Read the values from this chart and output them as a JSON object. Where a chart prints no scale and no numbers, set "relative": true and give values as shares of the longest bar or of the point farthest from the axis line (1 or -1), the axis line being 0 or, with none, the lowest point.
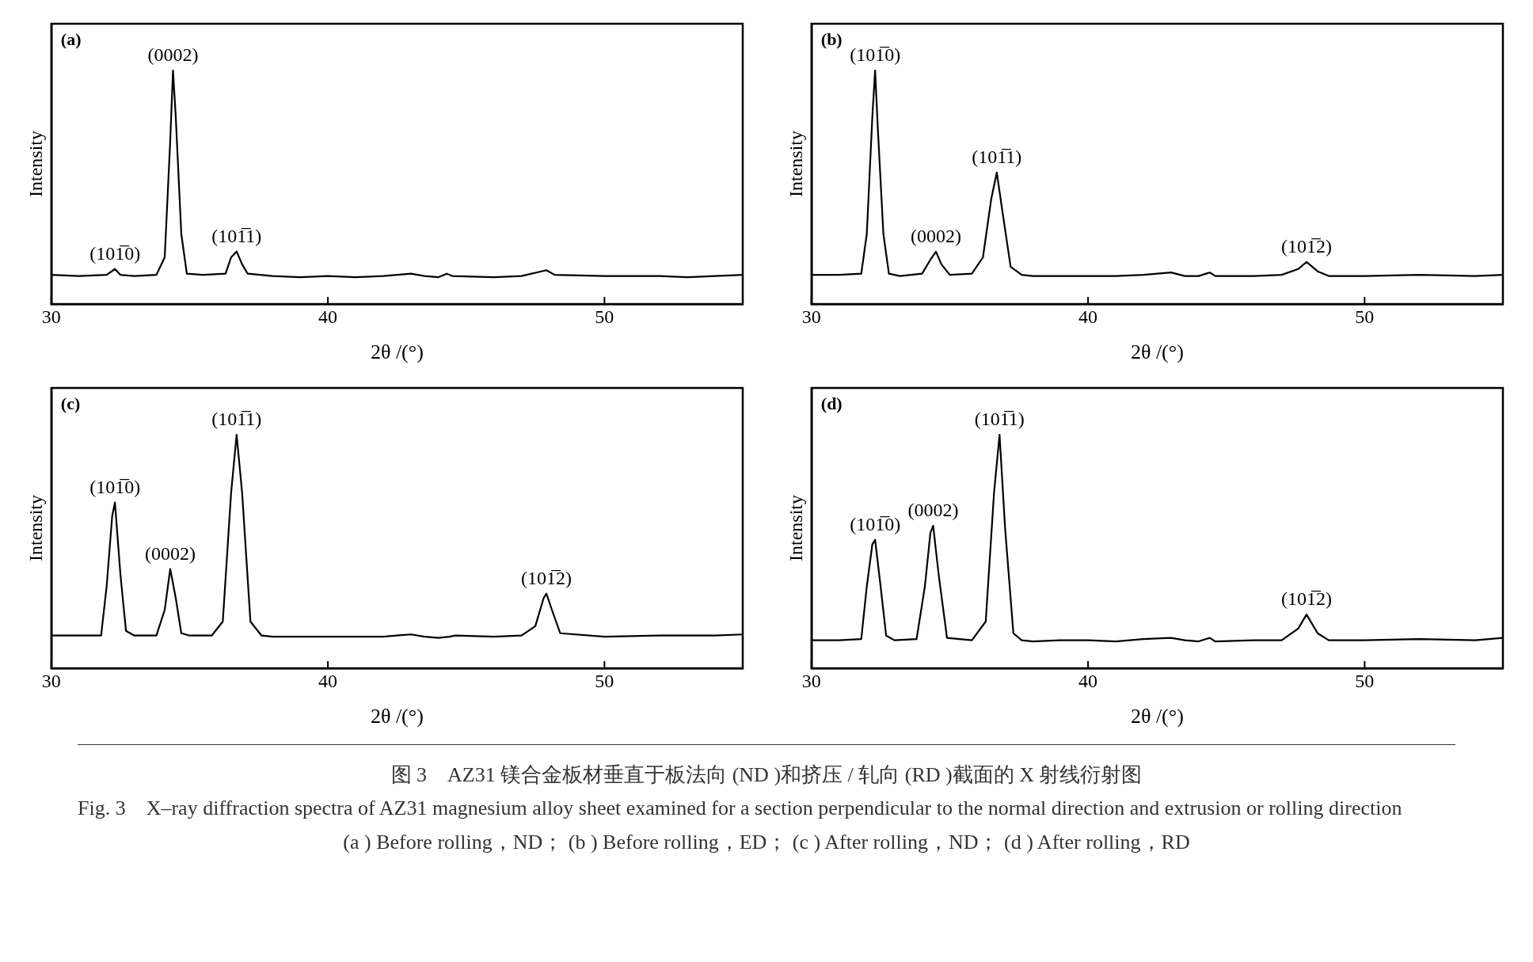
{
  "chart_data": [
    {
      "type": "line",
      "relative": true,
      "xlabel": "2θ /(°)",
      "ylabel": "Intensity",
      "xlim": [
        30,
        55
      ],
      "xticks": [
        30,
        40,
        50
      ],
      "grid": false,
      "legend": false,
      "marker": "none",
      "line_style": "solid",
      "series": [
        {
          "color": "#000000",
          "x": [
            30,
            31,
            32,
            32.3,
            32.5,
            33,
            33.8,
            34.1,
            34.3,
            34.4,
            34.5,
            34.7,
            34.9,
            35.5,
            36.3,
            36.5,
            36.7,
            36.9,
            37.1,
            38,
            39,
            40,
            41,
            42,
            43,
            43.5,
            44,
            44.3,
            44.5,
            46,
            47,
            47.9,
            48.2,
            50,
            52,
            53,
            54,
            55
          ],
          "values": [
            0.125,
            0.12,
            0.125,
            0.15,
            0.125,
            0.12,
            0.125,
            0.2,
            0.7,
            1.0,
            0.8,
            0.3,
            0.13,
            0.125,
            0.13,
            0.2,
            0.225,
            0.17,
            0.13,
            0.12,
            0.115,
            0.12,
            0.115,
            0.12,
            0.13,
            0.12,
            0.115,
            0.13,
            0.12,
            0.115,
            0.12,
            0.145,
            0.125,
            0.12,
            0.12,
            0.115,
            0.12,
            0.125
          ]
        }
      ],
      "annotations": [
        "(a)",
        {
          "text": "(101̅0)",
          "x": 32.3,
          "y": 0.15
        },
        {
          "text": "(0002)",
          "x": 34.4,
          "y": 1.0
        },
        {
          "text": "(101̅1)",
          "x": 36.7,
          "y": 0.225
        }
      ]
    },
    {
      "type": "line",
      "relative": true,
      "xlabel": "2θ /(°)",
      "ylabel": "Intensity",
      "xlim": [
        30,
        55
      ],
      "xticks": [
        30,
        40,
        50
      ],
      "grid": false,
      "legend": false,
      "marker": "none",
      "line_style": "solid",
      "series": [
        {
          "color": "#000000",
          "x": [
            30,
            31,
            31.8,
            32.0,
            32.2,
            32.3,
            32.4,
            32.6,
            32.8,
            33.2,
            34.0,
            34.3,
            34.5,
            34.7,
            35.0,
            35.8,
            36.2,
            36.5,
            36.7,
            36.9,
            37.2,
            37.6,
            38,
            39,
            40,
            41,
            42,
            43,
            43.5,
            44,
            44.4,
            44.6,
            46,
            47,
            47.6,
            47.9,
            48.3,
            48.7,
            50,
            52,
            54,
            55
          ],
          "values": [
            0.125,
            0.125,
            0.13,
            0.3,
            0.8,
            1.0,
            0.75,
            0.3,
            0.13,
            0.12,
            0.13,
            0.19,
            0.224,
            0.17,
            0.125,
            0.13,
            0.2,
            0.45,
            0.563,
            0.4,
            0.16,
            0.125,
            0.12,
            0.12,
            0.12,
            0.12,
            0.125,
            0.135,
            0.12,
            0.12,
            0.135,
            0.12,
            0.12,
            0.125,
            0.15,
            0.18,
            0.14,
            0.12,
            0.12,
            0.125,
            0.12,
            0.125
          ]
        }
      ],
      "annotations": [
        "(b)",
        {
          "text": "(101̅0)",
          "x": 32.3,
          "y": 1.0
        },
        {
          "text": "(0002)",
          "x": 34.5,
          "y": 0.224
        },
        {
          "text": "(101̅1)",
          "x": 36.7,
          "y": 0.563
        },
        {
          "text": "(101̅2)",
          "x": 47.9,
          "y": 0.18
        }
      ]
    },
    {
      "type": "line",
      "relative": true,
      "xlabel": "2θ /(°)",
      "ylabel": "Intensity",
      "xlim": [
        30,
        55
      ],
      "xticks": [
        30,
        40,
        50
      ],
      "grid": false,
      "legend": false,
      "marker": "none",
      "line_style": "solid",
      "series": [
        {
          "color": "#000000",
          "x": [
            30,
            31,
            31.8,
            32.0,
            32.2,
            32.3,
            32.5,
            32.7,
            33,
            33.8,
            34.1,
            34.3,
            34.5,
            34.7,
            35.0,
            35.8,
            36.2,
            36.5,
            36.7,
            36.9,
            37.2,
            37.6,
            38,
            39,
            40,
            41,
            42,
            43,
            43.5,
            44,
            44.4,
            44.6,
            46,
            47,
            47.5,
            47.8,
            47.9,
            48.1,
            48.4,
            50,
            52,
            54,
            55
          ],
          "values": [
            0.14,
            0.14,
            0.14,
            0.35,
            0.65,
            0.71,
            0.4,
            0.16,
            0.14,
            0.14,
            0.25,
            0.425,
            0.3,
            0.15,
            0.14,
            0.14,
            0.2,
            0.75,
            1.0,
            0.75,
            0.2,
            0.14,
            0.135,
            0.135,
            0.135,
            0.135,
            0.135,
            0.145,
            0.135,
            0.13,
            0.135,
            0.14,
            0.135,
            0.14,
            0.18,
            0.3,
            0.32,
            0.25,
            0.15,
            0.135,
            0.14,
            0.14,
            0.145
          ]
        }
      ],
      "annotations": [
        "(c)",
        {
          "text": "(101̅0)",
          "x": 32.3,
          "y": 0.71
        },
        {
          "text": "(0002)",
          "x": 34.3,
          "y": 0.425
        },
        {
          "text": "(101̅1)",
          "x": 36.7,
          "y": 1.0
        },
        {
          "text": "(101̅2)",
          "x": 47.9,
          "y": 0.32
        }
      ]
    },
    {
      "type": "line",
      "relative": true,
      "xlabel": "2θ /(°)",
      "ylabel": "Intensity",
      "xlim": [
        30,
        55
      ],
      "xticks": [
        30,
        40,
        50
      ],
      "grid": false,
      "legend": false,
      "marker": "none",
      "line_style": "solid",
      "series": [
        {
          "color": "#000000",
          "x": [
            30,
            31,
            31.8,
            32.0,
            32.2,
            32.3,
            32.5,
            32.7,
            33,
            33.8,
            34.1,
            34.3,
            34.4,
            34.6,
            34.9,
            35.8,
            36.3,
            36.6,
            36.8,
            37.0,
            37.3,
            37.6,
            38,
            39,
            40,
            41,
            42,
            43,
            43.5,
            44,
            44.4,
            44.6,
            46,
            47,
            47.6,
            47.9,
            48.3,
            48.7,
            50,
            52,
            54,
            55
          ],
          "values": [
            0.12,
            0.12,
            0.125,
            0.35,
            0.53,
            0.55,
            0.35,
            0.14,
            0.12,
            0.125,
            0.35,
            0.58,
            0.61,
            0.4,
            0.13,
            0.12,
            0.2,
            0.75,
            1.0,
            0.6,
            0.15,
            0.12,
            0.115,
            0.12,
            0.12,
            0.115,
            0.125,
            0.13,
            0.12,
            0.115,
            0.13,
            0.115,
            0.12,
            0.12,
            0.17,
            0.23,
            0.15,
            0.12,
            0.12,
            0.125,
            0.12,
            0.13
          ]
        }
      ],
      "annotations": [
        "(d)",
        {
          "text": "(101̅0)",
          "x": 32.3,
          "y": 0.55
        },
        {
          "text": "(0002)",
          "x": 34.4,
          "y": 0.61
        },
        {
          "text": "(101̅1)",
          "x": 36.8,
          "y": 1.0
        },
        {
          "text": "(101̅2)",
          "x": 47.9,
          "y": 0.23
        }
      ]
    },
    {
      "type": "other",
      "annotations": [
        "图 3　AZ31 镁合金板材垂直于板法向 (ND )和挤压 / 轧向 (RD )截面的 X 射线衍射图",
        "Fig. 3　X–ray diffraction spectra of AZ31 magnesium alloy sheet examined for a section perpendicular to the normal direction and extrusion or rolling direction",
        "(a ) Before rolling，ND； (b ) Before rolling，ED； (c ) After rolling，ND； (d ) After rolling，RD"
      ]
    }
  ]
}
